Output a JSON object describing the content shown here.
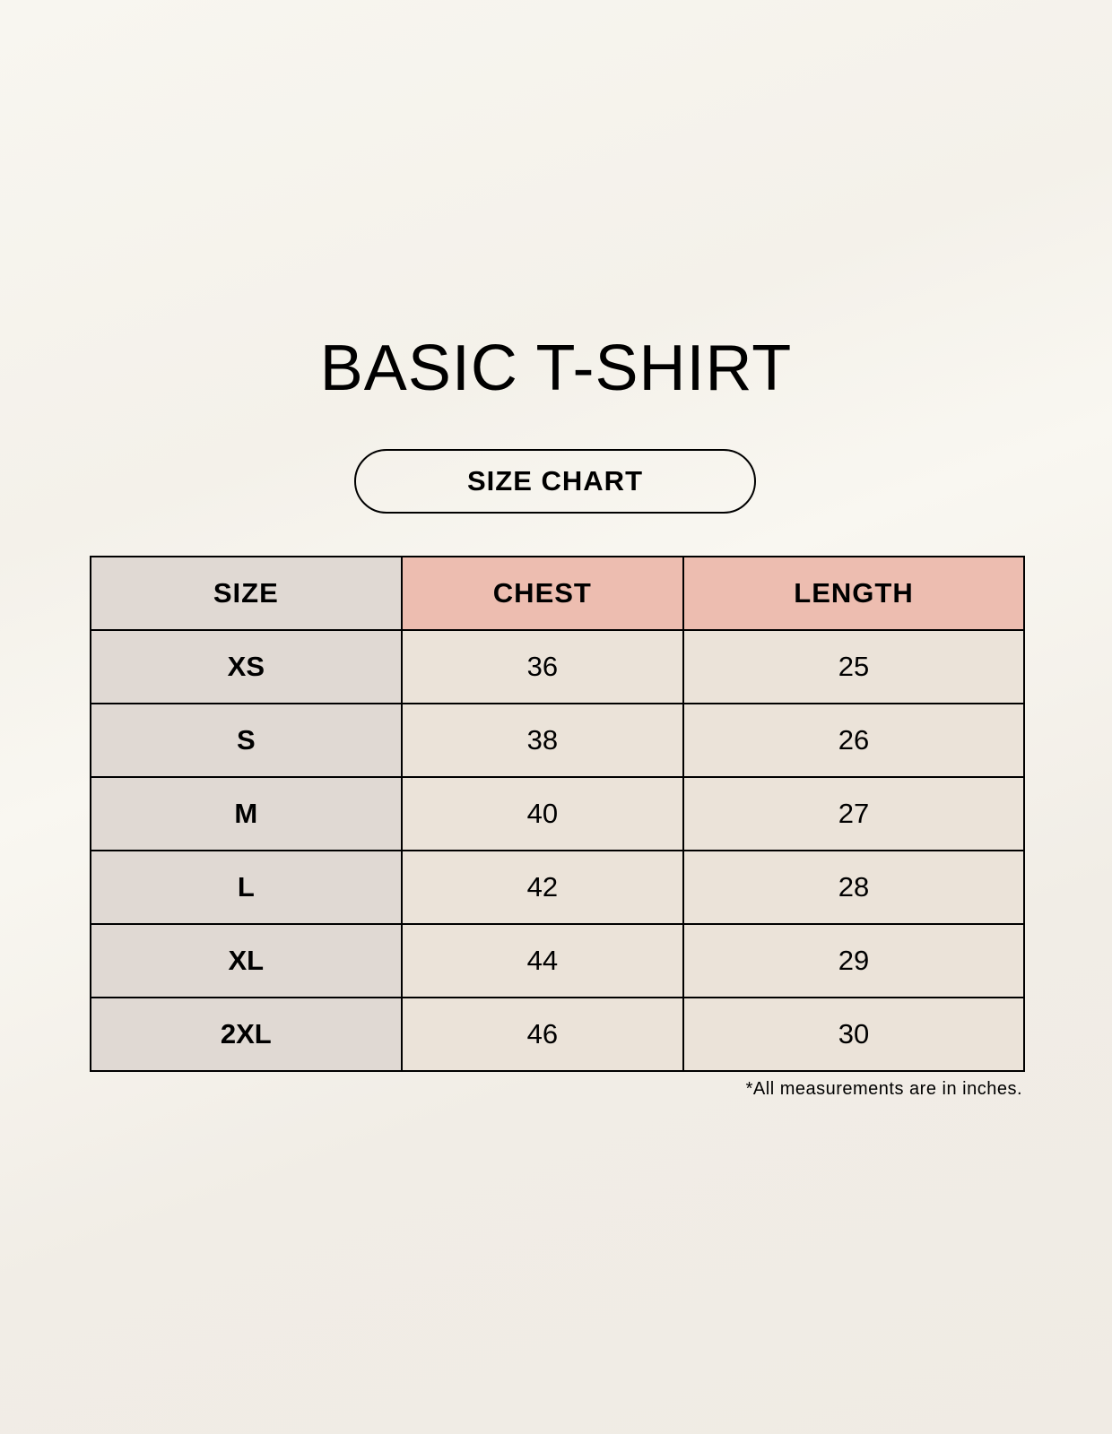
{
  "title": "BASIC T-SHIRT",
  "subtitle": "SIZE CHART",
  "table": {
    "headers": [
      "SIZE",
      "CHEST",
      "LENGTH"
    ],
    "rows": [
      [
        "XS",
        "36",
        "25"
      ],
      [
        "S",
        "38",
        "26"
      ],
      [
        "M",
        "40",
        "27"
      ],
      [
        "L",
        "42",
        "28"
      ],
      [
        "XL",
        "44",
        "29"
      ],
      [
        "2XL",
        "46",
        "30"
      ]
    ]
  },
  "note": "*All measurements are in inches.",
  "colors": {
    "size_column": "#e0d9d3",
    "header_accent": "#edbdb0",
    "cell": "#ebe3d9"
  }
}
